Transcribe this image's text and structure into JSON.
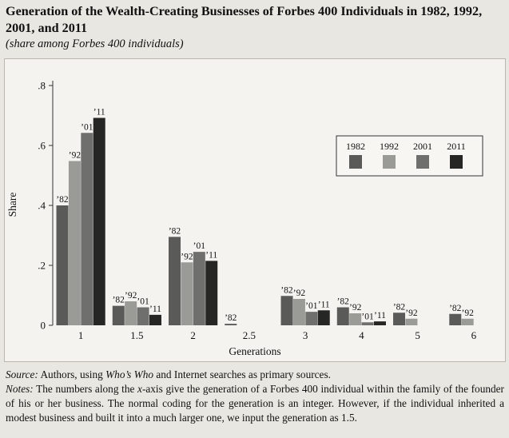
{
  "title": "Generation of the Wealth-Creating Businesses of Forbes 400 Individuals in 1982, 1992, 2001, and 2011",
  "subtitle": "(share among Forbes 400 individuals)",
  "source_label": "Source:",
  "source_text_1": " Authors, using ",
  "source_italic": "Who’s Who",
  "source_text_2": " and Internet searches as primary sources.",
  "notes_label": "Notes:",
  "notes_text_1": " The numbers along the ",
  "notes_italic": "x",
  "notes_text_2": "-axis give the generation of a Forbes 400 individual within the family of the founder of his or her business. The normal coding for the generation is an integer. However, if the individual inherited a modest business and built it into a much larger one, we input the generation as 1.5.",
  "chart_data": {
    "type": "bar",
    "title": "",
    "xlabel": "Generations",
    "ylabel": "Share",
    "ylim": [
      0,
      0.8
    ],
    "yticks": [
      0,
      0.2,
      0.4,
      0.6,
      0.8
    ],
    "ytick_labels": [
      "0",
      ".2",
      ".4",
      ".6",
      ".8"
    ],
    "categories": [
      "1",
      "1.5",
      "2",
      "2.5",
      "3",
      "4",
      "5",
      "6"
    ],
    "legend_position": "top-right",
    "series": [
      {
        "name": "1982",
        "short": "’82",
        "color": "#5a5a58",
        "values": [
          0.4,
          0.065,
          0.295,
          0.005,
          0.098,
          0.06,
          0.042,
          0.038
        ]
      },
      {
        "name": "1992",
        "short": "’92",
        "color": "#9a9a96",
        "values": [
          0.548,
          0.08,
          0.21,
          0,
          0.088,
          0.04,
          0.022,
          0.022
        ]
      },
      {
        "name": "2001",
        "short": "’01",
        "color": "#6f6f6d",
        "values": [
          0.642,
          0.06,
          0.245,
          0,
          0.045,
          0.01,
          0,
          0
        ]
      },
      {
        "name": "2011",
        "short": "’11",
        "color": "#262625",
        "values": [
          0.692,
          0.035,
          0.215,
          0,
          0.05,
          0.013,
          0,
          0
        ]
      }
    ],
    "bar_labels": [
      [
        "’82",
        "’92",
        "’01",
        "’11"
      ],
      [
        "’82",
        "’92",
        "’01",
        "’11"
      ],
      [
        "’82",
        "’92",
        "’01",
        "’11"
      ],
      [
        "’82",
        "",
        "",
        ""
      ],
      [
        "’82",
        "’92",
        "’01",
        "’11"
      ],
      [
        "’82",
        "’92",
        "’01",
        "’11"
      ],
      [
        "’82",
        "’92",
        "",
        ""
      ],
      [
        "’82",
        "’92",
        "",
        ""
      ]
    ]
  }
}
